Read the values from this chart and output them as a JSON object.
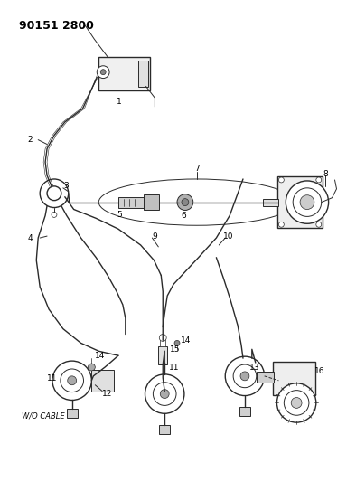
{
  "title": "90151 2800",
  "background_color": "#ffffff",
  "line_color": "#2a2a2a",
  "text_color": "#000000",
  "figsize": [
    3.94,
    5.33
  ],
  "dpi": 100
}
